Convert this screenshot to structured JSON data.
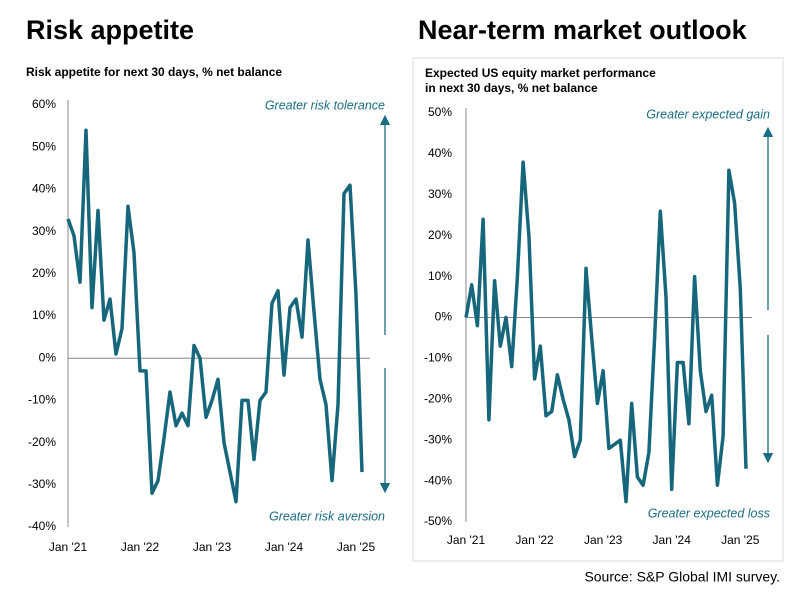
{
  "chart_data": [
    {
      "type": "line",
      "heading": "Risk appetite",
      "subtitle": [
        "Risk appetite for next 30 days, % net balance"
      ],
      "annotations": [
        "Greater risk tolerance",
        "Greater risk aversion"
      ],
      "categories": [
        "Jan '21",
        null,
        null,
        null,
        null,
        null,
        null,
        null,
        null,
        null,
        null,
        null,
        "Jan '22",
        null,
        null,
        null,
        null,
        null,
        null,
        null,
        null,
        null,
        null,
        null,
        "Jan '23",
        null,
        null,
        null,
        null,
        null,
        null,
        null,
        null,
        null,
        null,
        null,
        "Jan '24",
        null,
        null,
        null,
        null,
        null,
        null,
        null,
        null,
        null,
        null,
        null,
        "Jan '25",
        null
      ],
      "series": [
        {
          "name": "Risk appetite",
          "color": "#17677c",
          "values": [
            33,
            29,
            18,
            54,
            12,
            35,
            9,
            14,
            1,
            7,
            36,
            25,
            -3,
            -3,
            -32,
            -29,
            -19,
            -8,
            -16,
            -13,
            -16,
            3,
            0,
            -14,
            -10,
            -5,
            -20,
            -27,
            -34,
            -10,
            -10,
            -24,
            -10,
            -8,
            13,
            16,
            -4,
            12,
            14,
            5,
            28,
            11,
            -5,
            -11,
            -29,
            -11,
            39,
            41,
            15,
            -27
          ]
        }
      ],
      "ylim": [
        -40,
        60
      ],
      "yticks": [
        {
          "value": -40,
          "label": "-40%"
        },
        {
          "value": -30,
          "label": "-30%"
        },
        {
          "value": -20,
          "label": "-20%"
        },
        {
          "value": -10,
          "label": "-10%"
        },
        {
          "value": 0,
          "label": "0%"
        },
        {
          "value": 10,
          "label": "10%"
        },
        {
          "value": 20,
          "label": "20%"
        },
        {
          "value": 30,
          "label": "30%"
        },
        {
          "value": 40,
          "label": "40%"
        },
        {
          "value": 50,
          "label": "50%"
        },
        {
          "value": 60,
          "label": "60%"
        }
      ]
    },
    {
      "type": "line",
      "heading": "Near-term market outlook",
      "subtitle": [
        "Expected US equity market performance",
        "in next 30 days, % net balance"
      ],
      "annotations": [
        "Greater expected gain",
        "Greater  expected loss"
      ],
      "categories": [
        "Jan '21",
        null,
        null,
        null,
        null,
        null,
        null,
        null,
        null,
        null,
        null,
        null,
        "Jan '22",
        null,
        null,
        null,
        null,
        null,
        null,
        null,
        null,
        null,
        null,
        null,
        "Jan '23",
        null,
        null,
        null,
        null,
        null,
        null,
        null,
        null,
        null,
        null,
        null,
        "Jan '24",
        null,
        null,
        null,
        null,
        null,
        null,
        null,
        null,
        null,
        null,
        null,
        "Jan '25",
        null
      ],
      "series": [
        {
          "name": "Expected US equity market performance",
          "color": "#17677c",
          "values": [
            0,
            8,
            -2,
            24,
            -25,
            9,
            -7,
            0,
            -12,
            10,
            38,
            20,
            -15,
            -7,
            -24,
            -23,
            -14,
            -20,
            -25,
            -34,
            -30,
            12,
            -5,
            -21,
            -13,
            -32,
            -31,
            -30,
            -45,
            -21,
            -39,
            -41,
            -33,
            -5,
            26,
            5,
            -42,
            -11,
            -11,
            -26,
            10,
            -13,
            -23,
            -19,
            -41,
            -29,
            36,
            28,
            7,
            -37
          ]
        }
      ],
      "ylim": [
        -50,
        50
      ],
      "yticks": [
        {
          "value": -50,
          "label": "-50%"
        },
        {
          "value": -40,
          "label": "-40%"
        },
        {
          "value": -30,
          "label": "-30%"
        },
        {
          "value": -20,
          "label": "-20%"
        },
        {
          "value": -10,
          "label": "-10%"
        },
        {
          "value": 0,
          "label": "0%"
        },
        {
          "value": 10,
          "label": "10%"
        },
        {
          "value": 20,
          "label": "20%"
        },
        {
          "value": 30,
          "label": "30%"
        },
        {
          "value": 40,
          "label": "40%"
        },
        {
          "value": 50,
          "label": "50%"
        }
      ]
    }
  ],
  "source": "Source: S&P Global IMI survey."
}
